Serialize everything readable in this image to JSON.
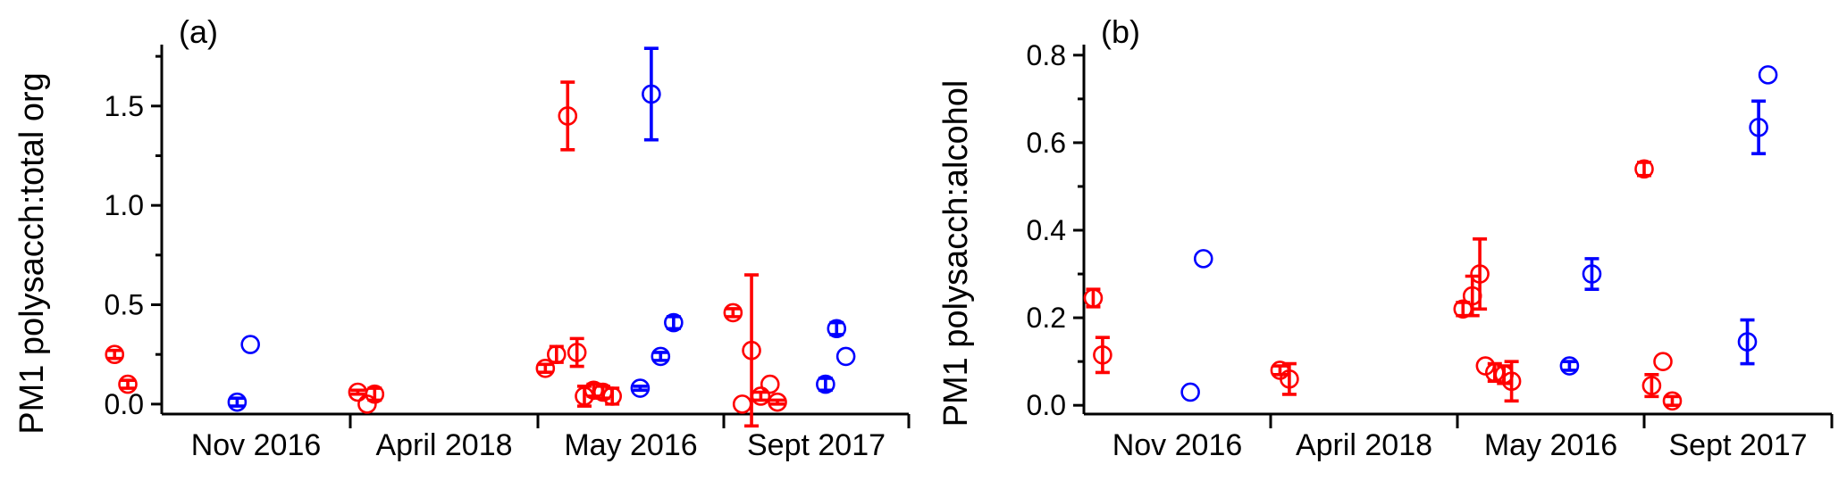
{
  "chart_data": [
    {
      "type": "scatter",
      "panel_label": "(a)",
      "title": "",
      "xlabel": "",
      "ylabel": "PM1 polysacch:total org",
      "ylim": [
        -0.05,
        1.8
      ],
      "yticks": [
        0.0,
        0.5,
        1.0,
        1.5
      ],
      "ytick_labels": [
        "0.0",
        "0.5",
        "1.0",
        "1.5"
      ],
      "categories": [
        "Nov 2016",
        "April 2018",
        "May 2016",
        "Sept 2017"
      ],
      "grid": false,
      "legend": "none",
      "series": [
        {
          "color": "#ff0000",
          "points": [
            {
              "category": "Nov 2016",
              "offset": -0.25,
              "y": 0.25,
              "err": 0.02
            },
            {
              "category": "Nov 2016",
              "offset": -0.18,
              "y": 0.1,
              "err": 0.02
            },
            {
              "category": "April 2018",
              "offset": 0.04,
              "y": 0.06,
              "err": 0.01
            },
            {
              "category": "April 2018",
              "offset": 0.09,
              "y": 0.0,
              "err": 0
            },
            {
              "category": "April 2018",
              "offset": 0.13,
              "y": 0.05,
              "err": 0.03
            },
            {
              "category": "May 2016",
              "offset": 0.04,
              "y": 0.18,
              "err": 0.02
            },
            {
              "category": "May 2016",
              "offset": 0.1,
              "y": 0.25,
              "err": 0.04
            },
            {
              "category": "May 2016",
              "offset": 0.16,
              "y": 1.45,
              "err": 0.17
            },
            {
              "category": "May 2016",
              "offset": 0.21,
              "y": 0.26,
              "err": 0.07
            },
            {
              "category": "May 2016",
              "offset": 0.25,
              "y": 0.04,
              "err": 0.05
            },
            {
              "category": "May 2016",
              "offset": 0.3,
              "y": 0.07,
              "err": 0.03
            },
            {
              "category": "May 2016",
              "offset": 0.35,
              "y": 0.06,
              "err": 0.03
            },
            {
              "category": "May 2016",
              "offset": 0.4,
              "y": 0.04,
              "err": 0.04
            },
            {
              "category": "Sept 2017",
              "offset": 0.05,
              "y": 0.46,
              "err": 0.02
            },
            {
              "category": "Sept 2017",
              "offset": 0.1,
              "y": 0.0,
              "err": 0
            },
            {
              "category": "Sept 2017",
              "offset": 0.15,
              "y": 0.27,
              "err": 0.38
            },
            {
              "category": "Sept 2017",
              "offset": 0.2,
              "y": 0.04,
              "err": 0.02
            },
            {
              "category": "Sept 2017",
              "offset": 0.25,
              "y": 0.1,
              "err": 0
            },
            {
              "category": "Sept 2017",
              "offset": 0.29,
              "y": 0.01,
              "err": 0.01
            }
          ]
        },
        {
          "color": "#0000ff",
          "points": [
            {
              "category": "Nov 2016",
              "offset": 0.4,
              "y": 0.01,
              "err": 0.02
            },
            {
              "category": "Nov 2016",
              "offset": 0.47,
              "y": 0.3,
              "err": 0
            },
            {
              "category": "May 2016",
              "offset": 0.55,
              "y": 0.08,
              "err": 0.01
            },
            {
              "category": "May 2016",
              "offset": 0.61,
              "y": 1.56,
              "err": 0.23
            },
            {
              "category": "May 2016",
              "offset": 0.66,
              "y": 0.24,
              "err": 0.02
            },
            {
              "category": "May 2016",
              "offset": 0.73,
              "y": 0.41,
              "err": 0.03
            },
            {
              "category": "Sept 2017",
              "offset": 0.55,
              "y": 0.1,
              "err": 0.03
            },
            {
              "category": "Sept 2017",
              "offset": 0.61,
              "y": 0.38,
              "err": 0.03
            },
            {
              "category": "Sept 2017",
              "offset": 0.66,
              "y": 0.24,
              "err": 0
            }
          ]
        }
      ]
    },
    {
      "type": "scatter",
      "panel_label": "(b)",
      "title": "",
      "xlabel": "",
      "ylabel": "PM1 polysacch:alcohol",
      "ylim": [
        -0.02,
        0.82
      ],
      "yticks": [
        0.0,
        0.2,
        0.4,
        0.6,
        0.8
      ],
      "ytick_labels": [
        "0.0",
        "0.2",
        "0.4",
        "0.6",
        "0.8"
      ],
      "categories": [
        "Nov 2016",
        "April 2018",
        "May 2016",
        "Sept 2017"
      ],
      "grid": false,
      "legend": "none",
      "series": [
        {
          "color": "#ff0000",
          "points": [
            {
              "category": "Nov 2016",
              "offset": 0.05,
              "y": 0.245,
              "err": 0.02
            },
            {
              "category": "Nov 2016",
              "offset": 0.1,
              "y": 0.115,
              "err": 0.04
            },
            {
              "category": "April 2018",
              "offset": 0.05,
              "y": 0.08,
              "err": 0.01
            },
            {
              "category": "April 2018",
              "offset": 0.1,
              "y": 0.06,
              "err": 0.035
            },
            {
              "category": "May 2016",
              "offset": 0.03,
              "y": 0.22,
              "err": 0.015
            },
            {
              "category": "May 2016",
              "offset": 0.08,
              "y": 0.25,
              "err": 0.045
            },
            {
              "category": "May 2016",
              "offset": 0.12,
              "y": 0.3,
              "err": 0.08
            },
            {
              "category": "May 2016",
              "offset": 0.15,
              "y": 0.09,
              "err": 0
            },
            {
              "category": "May 2016",
              "offset": 0.2,
              "y": 0.075,
              "err": 0.02
            },
            {
              "category": "May 2016",
              "offset": 0.25,
              "y": 0.07,
              "err": 0.02
            },
            {
              "category": "May 2016",
              "offset": 0.29,
              "y": 0.055,
              "err": 0.045
            },
            {
              "category": "Sept 2017",
              "offset": 0.0,
              "y": 0.54,
              "err": 0.015
            },
            {
              "category": "Sept 2017",
              "offset": 0.04,
              "y": 0.045,
              "err": 0.025
            },
            {
              "category": "Sept 2017",
              "offset": 0.1,
              "y": 0.1,
              "err": 0
            },
            {
              "category": "Sept 2017",
              "offset": 0.15,
              "y": 0.01,
              "err": 0.01
            }
          ]
        },
        {
          "color": "#0000ff",
          "points": [
            {
              "category": "Nov 2016",
              "offset": 0.57,
              "y": 0.03,
              "err": 0
            },
            {
              "category": "Nov 2016",
              "offset": 0.64,
              "y": 0.335,
              "err": 0
            },
            {
              "category": "May 2016",
              "offset": 0.6,
              "y": 0.09,
              "err": 0.01
            },
            {
              "category": "May 2016",
              "offset": 0.72,
              "y": 0.3,
              "err": 0.035
            },
            {
              "category": "Sept 2017",
              "offset": 0.55,
              "y": 0.145,
              "err": 0.05
            },
            {
              "category": "Sept 2017",
              "offset": 0.61,
              "y": 0.635,
              "err": 0.06
            },
            {
              "category": "Sept 2017",
              "offset": 0.66,
              "y": 0.755,
              "err": 0
            }
          ]
        }
      ]
    }
  ]
}
